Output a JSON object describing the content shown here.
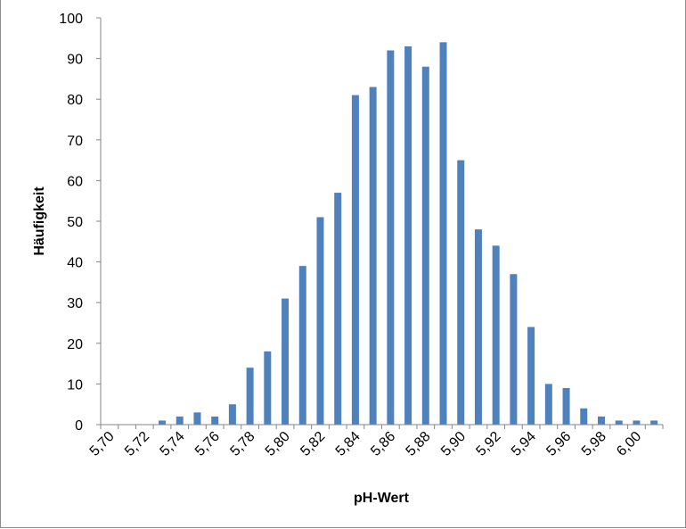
{
  "chart_data": {
    "type": "bar",
    "title": "",
    "xlabel": "pH-Wert",
    "ylabel": "Häufigkeit",
    "ylim": [
      0,
      100
    ],
    "yticks": [
      0,
      10,
      20,
      30,
      40,
      50,
      60,
      70,
      80,
      90,
      100
    ],
    "grid": false,
    "legend": "none",
    "bar_color": "#4f81bd",
    "categories": [
      "5,70",
      "5,71",
      "5,72",
      "5,73",
      "5,74",
      "5,75",
      "5,76",
      "5,77",
      "5,78",
      "5,79",
      "5,80",
      "5,81",
      "5,82",
      "5,83",
      "5,84",
      "5,85",
      "5,86",
      "5,87",
      "5,88",
      "5,89",
      "5,90",
      "5,91",
      "5,92",
      "5,93",
      "5,94",
      "5,95",
      "5,96",
      "5,97",
      "5,98",
      "5,99",
      "6,00",
      "6,01"
    ],
    "xtick_labels": [
      "5,70",
      "5,72",
      "5,74",
      "5,76",
      "5,78",
      "5,80",
      "5,82",
      "5,84",
      "5,86",
      "5,88",
      "5,90",
      "5,92",
      "5,94",
      "5,96",
      "5,98",
      "6,00"
    ],
    "values": [
      0,
      0,
      0,
      1,
      2,
      3,
      2,
      5,
      14,
      18,
      31,
      39,
      51,
      57,
      81,
      83,
      92,
      93,
      88,
      94,
      65,
      48,
      44,
      37,
      24,
      10,
      9,
      4,
      2,
      1,
      1,
      1
    ]
  }
}
